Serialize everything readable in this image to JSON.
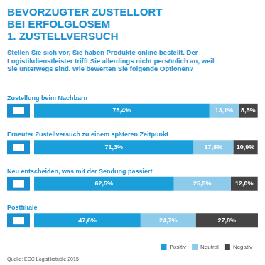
{
  "chart_data": {
    "type": "bar",
    "title": "BEVORZUGTER ZUSTELLORT\nBEI ERFOLGLOSEM\n1. ZUSTELLVERSUCH",
    "subtitle": "Stellen Sie sich vor, Sie haben Produkte online bestellt. Der Logistikdienstleister trifft Sie allerdings nicht persönlich an, weil Sie unterwegs sind. Wie bewerten Sie folgende Optionen?",
    "source": "Quelle: ECC Logistikstudie 2015",
    "orientation": "horizontal",
    "stacked": true,
    "data_labels": true,
    "tick_labels": false,
    "grid": false,
    "legend": "bottom",
    "categories": [
      "Zustellung beim Nachbarn",
      "Erneuter Zustellversuch zu einem späteren Zeitpunkt",
      "Neu entscheiden, was mit der Sendung passiert",
      "Postfiliale"
    ],
    "series": [
      {
        "name": "Positiv",
        "color": "#1a9fdb",
        "values": [
          78.4,
          71.3,
          62.5,
          47.6
        ],
        "value_labels": [
          "78,4%",
          "71,3%",
          "62,5%",
          "47,6%"
        ]
      },
      {
        "name": "Neutral",
        "color": "#8ecbea",
        "values": [
          13.1,
          17.8,
          25.5,
          24.7
        ],
        "value_labels": [
          "13,1%",
          "17,8%",
          "25,5%",
          "24,7%"
        ]
      },
      {
        "name": "Negativ",
        "color": "#454545",
        "values": [
          8.5,
          10.9,
          12.0,
          27.8
        ],
        "value_labels": [
          "8,5%",
          "10,9%",
          "12,0%",
          "27,8%"
        ]
      }
    ]
  }
}
